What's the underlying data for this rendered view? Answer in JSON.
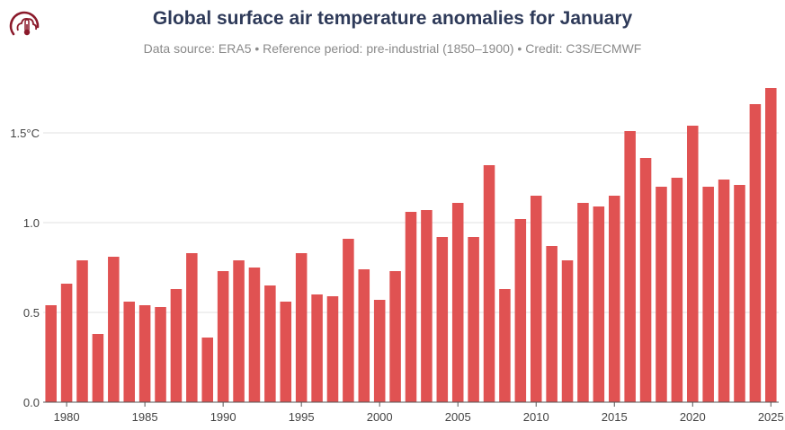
{
  "header": {
    "title": "Global surface air temperature anomalies for January",
    "subtitle": "Data source: ERA5 • Reference period: pre-industrial (1850–1900) • Credit: C3S/ECMWF",
    "logo_icon": "thermometer-cloud-icon"
  },
  "colors": {
    "bar": "#e05252",
    "grid": "#e2e2e2",
    "title": "#2e3a59",
    "logo": "#8b1a2b"
  },
  "chart_data": {
    "type": "bar",
    "title": "Global surface air temperature anomalies for January",
    "xlabel": "",
    "ylabel": "",
    "unit": "°C",
    "ylim": [
      0,
      1.8
    ],
    "grid": true,
    "y_ticks": [
      "0.0",
      "0.5",
      "1.0",
      "1.5°C"
    ],
    "x_ticks": [
      "1980",
      "1985",
      "1990",
      "1995",
      "2000",
      "2005",
      "2010",
      "2015",
      "2020",
      "2025"
    ],
    "categories": [
      1979,
      1980,
      1981,
      1982,
      1983,
      1984,
      1985,
      1986,
      1987,
      1988,
      1989,
      1990,
      1991,
      1992,
      1993,
      1994,
      1995,
      1996,
      1997,
      1998,
      1999,
      2000,
      2001,
      2002,
      2003,
      2004,
      2005,
      2006,
      2007,
      2008,
      2009,
      2010,
      2011,
      2012,
      2013,
      2014,
      2015,
      2016,
      2017,
      2018,
      2019,
      2020,
      2021,
      2022,
      2023,
      2024,
      2025
    ],
    "values": [
      0.54,
      0.66,
      0.79,
      0.38,
      0.81,
      0.56,
      0.54,
      0.53,
      0.63,
      0.83,
      0.36,
      0.73,
      0.79,
      0.75,
      0.65,
      0.56,
      0.83,
      0.6,
      0.59,
      0.91,
      0.74,
      0.57,
      0.73,
      1.06,
      1.07,
      0.92,
      1.11,
      0.92,
      1.32,
      0.63,
      1.02,
      1.15,
      0.87,
      0.79,
      1.11,
      1.09,
      1.15,
      1.51,
      1.36,
      1.2,
      1.25,
      1.54,
      1.2,
      1.24,
      1.21,
      1.66,
      1.75
    ]
  }
}
